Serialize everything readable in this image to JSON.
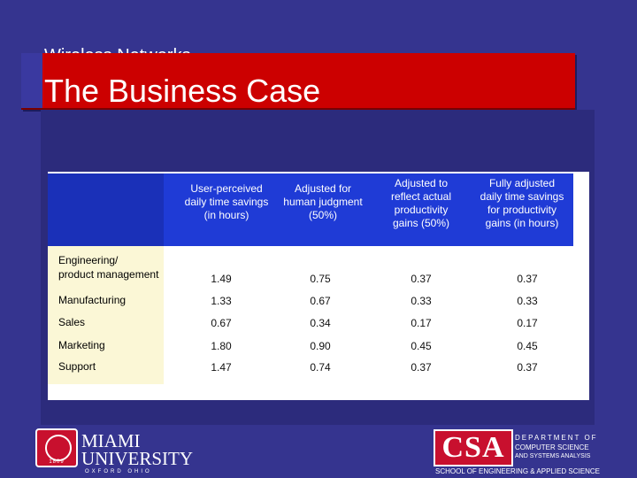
{
  "slide": {
    "subtitle": "Wireless Networks",
    "title": "The Business Case"
  },
  "table": {
    "headers": [
      "User-perceived\ndaily time savings\n(in hours)",
      "Adjusted for\nhuman judgment\n(50%)",
      "Adjusted to\nreflect actual\nproductivity\ngains (50%)",
      "Fully adjusted\ndaily time savings\nfor productivity\ngains (in hours)"
    ],
    "rows": [
      {
        "label": "Engineering/\nproduct management",
        "values": [
          "1.49",
          "0.75",
          "0.37",
          "0.37"
        ]
      },
      {
        "label": "Manufacturing",
        "values": [
          "1.33",
          "0.67",
          "0.33",
          "0.33"
        ]
      },
      {
        "label": "Sales",
        "values": [
          "0.67",
          "0.34",
          "0.17",
          "0.17"
        ]
      },
      {
        "label": "Marketing",
        "values": [
          "1.80",
          "0.90",
          "0.45",
          "0.45"
        ]
      },
      {
        "label": "Support",
        "values": [
          "1.47",
          "0.74",
          "0.37",
          "0.37"
        ]
      }
    ]
  },
  "footer": {
    "miami_line1": "MIAMI",
    "miami_line2": "UNIVERSITY",
    "miami_location": "OXFORD OHIO",
    "seal_year": "1809",
    "csa_letters": "CSA",
    "dept_line1": "DEPARTMENT OF",
    "dept_line2": "COMPUTER SCIENCE",
    "dept_line3": "AND SYSTEMS ANALYSIS",
    "school": "SCHOOL OF ENGINEERING & APPLIED SCIENCE"
  },
  "colors": {
    "background": "#35348f",
    "title_bar": "#cc0000",
    "header_blue": "#1f3bd6",
    "label_column": "#fbf7d6"
  }
}
